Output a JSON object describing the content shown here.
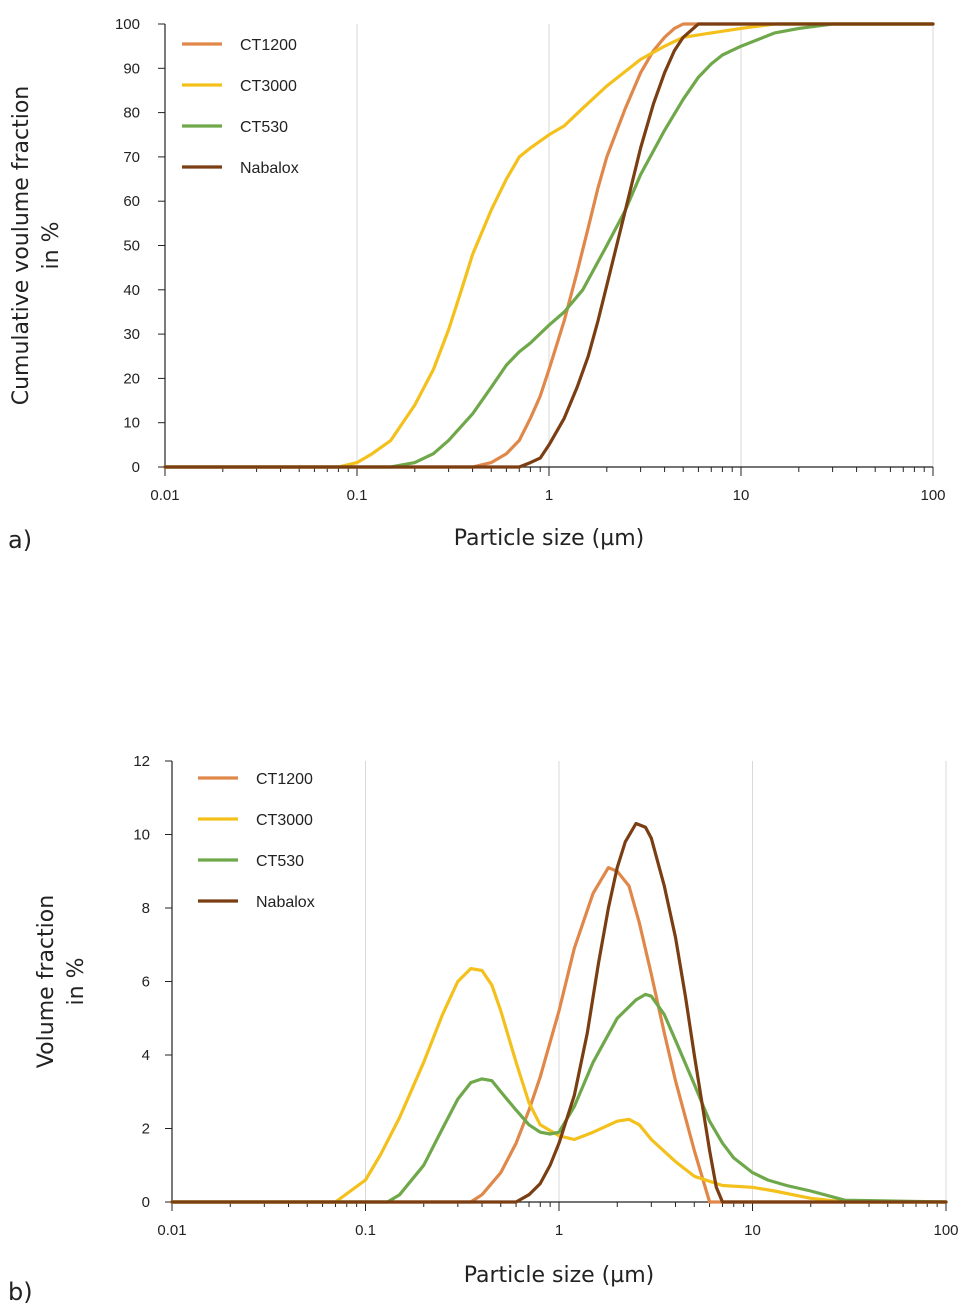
{
  "colors": {
    "CT1200": "#e0874a",
    "CT3000": "#f3c01c",
    "CT530": "#6fa84a",
    "Nabalox": "#7a3e12",
    "grid": "#d9d9d9",
    "axis": "#222222"
  },
  "chart_data": [
    {
      "type": "line",
      "panel_label": "a)",
      "xlabel": "Particle size (µm)",
      "ylabel": "Cumulative voulume fraction in %",
      "x_scale": "log",
      "xlim": [
        0.01,
        100
      ],
      "ylim": [
        0,
        100
      ],
      "x_ticks": [
        0.01,
        0.1,
        1,
        10,
        100
      ],
      "x_tick_labels": [
        "0.01",
        "0.1",
        "1",
        "10",
        "100"
      ],
      "y_ticks": [
        0,
        10,
        20,
        30,
        40,
        50,
        60,
        70,
        80,
        90,
        100
      ],
      "y_tick_labels": [
        "0",
        "10",
        "20",
        "30",
        "40",
        "50",
        "60",
        "70",
        "80",
        "90",
        "100"
      ],
      "grid": "vertical-major",
      "legend": "top-left",
      "series": [
        {
          "name": "CT1200",
          "x": [
            0.01,
            0.4,
            0.5,
            0.6,
            0.7,
            0.8,
            0.9,
            1.0,
            1.2,
            1.4,
            1.6,
            1.8,
            2.0,
            2.5,
            3.0,
            3.5,
            4.0,
            4.5,
            5.0,
            100
          ],
          "y": [
            0,
            0,
            1,
            3,
            6,
            11,
            16,
            22,
            33,
            44,
            54,
            63,
            70,
            81,
            89,
            94,
            97,
            99,
            100,
            100
          ]
        },
        {
          "name": "CT3000",
          "x": [
            0.01,
            0.08,
            0.1,
            0.12,
            0.15,
            0.2,
            0.25,
            0.3,
            0.35,
            0.4,
            0.5,
            0.6,
            0.7,
            0.8,
            1.0,
            1.2,
            1.5,
            2.0,
            3.0,
            4.0,
            5.0,
            7.0,
            10.0,
            15.0,
            20.0,
            100
          ],
          "y": [
            0,
            0,
            1,
            3,
            6,
            14,
            22,
            31,
            40,
            48,
            58,
            65,
            70,
            72,
            75,
            77,
            81,
            86,
            92,
            95,
            97,
            98,
            99,
            100,
            100,
            100
          ]
        },
        {
          "name": "CT530",
          "x": [
            0.01,
            0.15,
            0.2,
            0.25,
            0.3,
            0.4,
            0.5,
            0.6,
            0.7,
            0.8,
            1.0,
            1.2,
            1.5,
            2.0,
            2.5,
            3.0,
            4.0,
            5.0,
            6.0,
            7.0,
            8.0,
            10.0,
            15.0,
            20.0,
            30.0,
            100
          ],
          "y": [
            0,
            0,
            1,
            3,
            6,
            12,
            18,
            23,
            26,
            28,
            32,
            35,
            40,
            50,
            58,
            66,
            76,
            83,
            88,
            91,
            93,
            95,
            98,
            99,
            100,
            100
          ]
        },
        {
          "name": "Nabalox",
          "x": [
            0.01,
            0.7,
            0.8,
            0.9,
            1.0,
            1.2,
            1.4,
            1.6,
            1.8,
            2.0,
            2.5,
            3.0,
            3.5,
            4.0,
            4.5,
            5.0,
            6.0,
            100
          ],
          "y": [
            0,
            0,
            1,
            2,
            5,
            11,
            18,
            25,
            33,
            41,
            58,
            72,
            82,
            89,
            94,
            97,
            100,
            100
          ]
        }
      ]
    },
    {
      "type": "line",
      "panel_label": "b)",
      "xlabel": "Particle size (µm)",
      "ylabel": "Volume fraction in %",
      "x_scale": "log",
      "xlim": [
        0.01,
        100
      ],
      "ylim": [
        0,
        12
      ],
      "x_ticks": [
        0.01,
        0.1,
        1,
        10,
        100
      ],
      "x_tick_labels": [
        "0.01",
        "0.1",
        "1",
        "10",
        "100"
      ],
      "y_ticks": [
        0,
        2,
        4,
        6,
        8,
        10,
        12
      ],
      "y_tick_labels": [
        "0",
        "2",
        "4",
        "6",
        "8",
        "10",
        "12"
      ],
      "grid": "vertical-major",
      "legend": "top-left",
      "series": [
        {
          "name": "CT1200",
          "x": [
            0.01,
            0.35,
            0.4,
            0.5,
            0.6,
            0.7,
            0.8,
            1.0,
            1.2,
            1.5,
            1.8,
            2.0,
            2.3,
            2.6,
            3.0,
            3.5,
            4.0,
            5.0,
            6.0,
            100
          ],
          "y": [
            0,
            0,
            0.2,
            0.8,
            1.6,
            2.5,
            3.4,
            5.2,
            6.9,
            8.4,
            9.1,
            9.0,
            8.6,
            7.6,
            6.2,
            4.6,
            3.3,
            1.4,
            0,
            0
          ]
        },
        {
          "name": "CT3000",
          "x": [
            0.01,
            0.07,
            0.1,
            0.12,
            0.15,
            0.2,
            0.25,
            0.3,
            0.35,
            0.4,
            0.45,
            0.5,
            0.6,
            0.7,
            0.8,
            1.0,
            1.2,
            1.5,
            2.0,
            2.3,
            2.6,
            3.0,
            4.0,
            5.0,
            7.0,
            10.0,
            13.0,
            20.0,
            30.0,
            100
          ],
          "y": [
            0,
            0,
            0.6,
            1.3,
            2.3,
            3.8,
            5.1,
            6.0,
            6.35,
            6.3,
            5.9,
            5.2,
            3.8,
            2.7,
            2.1,
            1.8,
            1.7,
            1.9,
            2.2,
            2.25,
            2.1,
            1.7,
            1.1,
            0.7,
            0.45,
            0.4,
            0.3,
            0.1,
            0,
            0
          ]
        },
        {
          "name": "CT530",
          "x": [
            0.01,
            0.13,
            0.15,
            0.2,
            0.25,
            0.3,
            0.35,
            0.4,
            0.45,
            0.5,
            0.6,
            0.7,
            0.8,
            0.9,
            1.0,
            1.2,
            1.5,
            2.0,
            2.5,
            2.8,
            3.0,
            3.5,
            4.0,
            5.0,
            6.0,
            7.0,
            8.0,
            10.0,
            12.0,
            15.0,
            20.0,
            30.0,
            100
          ],
          "y": [
            0,
            0,
            0.2,
            1.0,
            2.0,
            2.8,
            3.25,
            3.35,
            3.3,
            3.0,
            2.5,
            2.1,
            1.9,
            1.85,
            1.9,
            2.6,
            3.8,
            5.0,
            5.5,
            5.65,
            5.6,
            5.1,
            4.4,
            3.2,
            2.2,
            1.6,
            1.2,
            0.8,
            0.6,
            0.45,
            0.3,
            0.05,
            0
          ]
        },
        {
          "name": "Nabalox",
          "x": [
            0.01,
            0.6,
            0.7,
            0.8,
            0.9,
            1.0,
            1.2,
            1.4,
            1.6,
            1.8,
            2.0,
            2.2,
            2.5,
            2.8,
            3.0,
            3.5,
            4.0,
            4.5,
            5.0,
            6.0,
            6.5,
            7.0,
            100
          ],
          "y": [
            0,
            0,
            0.2,
            0.5,
            1.0,
            1.6,
            2.9,
            4.6,
            6.5,
            8.0,
            9.1,
            9.8,
            10.3,
            10.2,
            9.9,
            8.6,
            7.2,
            5.6,
            4.0,
            1.4,
            0.4,
            0,
            0
          ]
        }
      ]
    }
  ]
}
